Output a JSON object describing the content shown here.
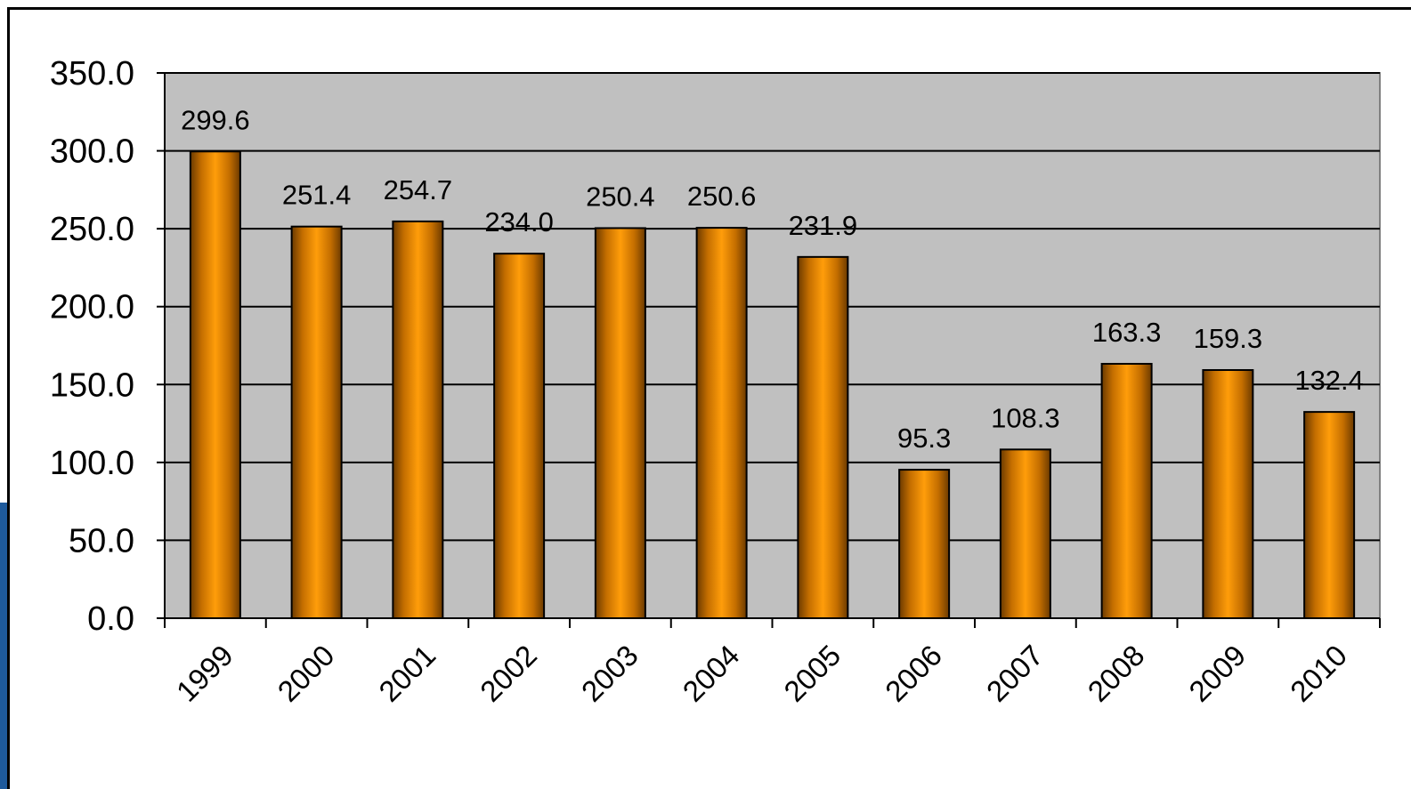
{
  "colors": {
    "bar": "#ff9900",
    "bar_edge": "#8a5200",
    "plot_bg": "#c0c0c0",
    "title": "#1f2b8f",
    "accent": "#1e5a9c"
  },
  "chart_data": {
    "type": "bar",
    "title": "",
    "xlabel": "",
    "ylabel": "",
    "categories": [
      "1999",
      "2000",
      "2001",
      "2002",
      "2003",
      "2004",
      "2005",
      "2006",
      "2007",
      "2008",
      "2009",
      "2010"
    ],
    "values": [
      299.6,
      251.4,
      254.7,
      234.0,
      250.4,
      250.6,
      231.9,
      95.3,
      108.3,
      163.3,
      159.3,
      132.4
    ],
    "data_labels": [
      "299.6",
      "251.4",
      "254.7",
      "234.0",
      "250.4",
      "250.6",
      "231.9",
      "95.3",
      "108.3",
      "163.3",
      "159.3",
      "132.4"
    ],
    "ylim": [
      0,
      350
    ],
    "yticks": [
      "0.0",
      "50.0",
      "100.0",
      "150.0",
      "200.0",
      "250.0",
      "300.0",
      "350.0"
    ],
    "grid": true,
    "legend": "none"
  }
}
